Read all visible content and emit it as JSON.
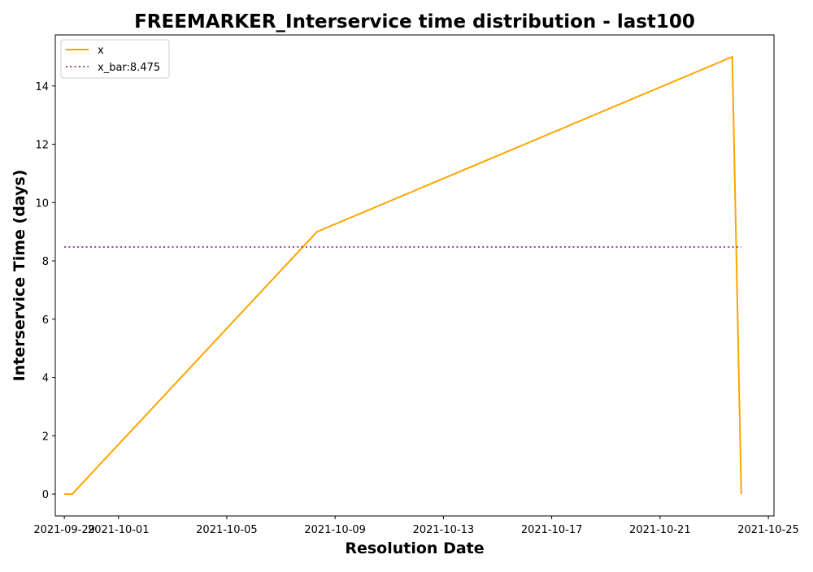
{
  "chart_data": {
    "type": "line",
    "title": "FREEMARKER_Interservice time distribution - last100",
    "xlabel": "Resolution Date",
    "ylabel": "Interservice Time (days)",
    "x_tick_labels": [
      "2021-09-29",
      "2021-10-01",
      "2021-10-05",
      "2021-10-09",
      "2021-10-13",
      "2021-10-17",
      "2021-10-21",
      "2021-10-25"
    ],
    "y_tick_labels": [
      "0",
      "2",
      "4",
      "6",
      "8",
      "10",
      "12",
      "14"
    ],
    "y_ticks": [
      0,
      2,
      4,
      6,
      8,
      10,
      12,
      14
    ],
    "xlim": [
      "2021-09-28T16:00",
      "2021-10-25T05:00"
    ],
    "ylim": [
      -0.75,
      15.75
    ],
    "grid": false,
    "legend_position": "top-left",
    "series": [
      {
        "name": "x",
        "color": "#FFA500",
        "style": "solid",
        "points": [
          {
            "x": "2021-09-29T00:00",
            "y": 0
          },
          {
            "x": "2021-09-29T07:00",
            "y": 0
          },
          {
            "x": "2021-10-08T08:00",
            "y": 9
          },
          {
            "x": "2021-10-23T16:00",
            "y": 15
          },
          {
            "x": "2021-10-24T00:00",
            "y": 0
          }
        ]
      },
      {
        "name": "x_bar:8.475",
        "color": "#800080",
        "style": "dotted",
        "points": [
          {
            "x": "2021-09-29T00:00",
            "y": 8.475
          },
          {
            "x": "2021-10-24T00:00",
            "y": 8.475
          }
        ]
      }
    ]
  }
}
